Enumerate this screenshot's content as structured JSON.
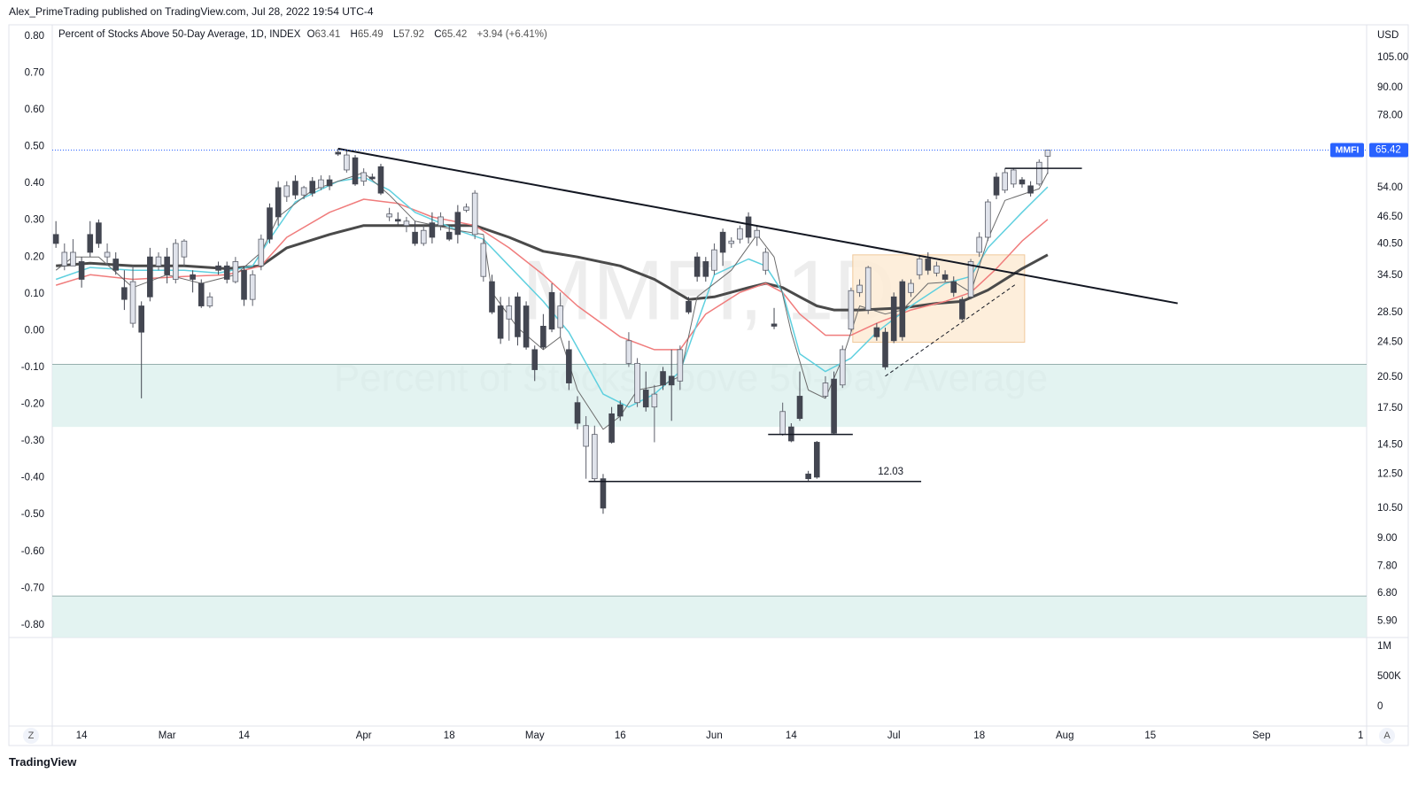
{
  "header": {
    "publisher": "Alex_PrimeTrading published on TradingView.com, Jul 28, 2022 19:54 UTC-4"
  },
  "ui": {
    "left_button": "Z",
    "right_button": "A",
    "logo": "TradingView"
  },
  "chart_data": {
    "type": "candlestick",
    "title": "Percent of Stocks Above 50-Day Average, 1D, INDEX",
    "ohlc_letters": [
      "O",
      "H",
      "L",
      "C"
    ],
    "change_label": "+3.94 (+6.41%)",
    "symbol": "MMFI",
    "watermark": "MMFI, 1D",
    "watermark_subtitle": "Percent of Stocks Above 50-Day Average",
    "currency": "USD",
    "log_scale": true,
    "up_color": "#e0e3eb",
    "down_color": "#434651",
    "xlim": [
      -0.43,
      153.3
    ],
    "xticks": [
      {
        "value": 3,
        "label": "14"
      },
      {
        "value": 13,
        "label": "Mar"
      },
      {
        "value": 22,
        "label": "14"
      },
      {
        "value": 36,
        "label": "Apr"
      },
      {
        "value": 46,
        "label": "18"
      },
      {
        "value": 56,
        "label": "May"
      },
      {
        "value": 66,
        "label": "16"
      },
      {
        "value": 77,
        "label": "Jun"
      },
      {
        "value": 86,
        "label": "14"
      },
      {
        "value": 98,
        "label": "Jul"
      },
      {
        "value": 108,
        "label": "18"
      },
      {
        "value": 118,
        "label": "Aug"
      },
      {
        "value": 128,
        "label": "15"
      },
      {
        "value": 141,
        "label": "Sep"
      },
      {
        "value": 152.6,
        "label": "1"
      }
    ],
    "ylim": [
      5.42,
      124.1
    ],
    "yticks": [
      {
        "value": 105,
        "label": "105.00"
      },
      {
        "value": 90,
        "label": "90.00"
      },
      {
        "value": 78,
        "label": "78.00"
      },
      {
        "value": 54,
        "label": "54.00"
      },
      {
        "value": 46.5,
        "label": "46.50"
      },
      {
        "value": 40.5,
        "label": "40.50"
      },
      {
        "value": 34.5,
        "label": "34.50"
      },
      {
        "value": 28.5,
        "label": "28.50"
      },
      {
        "value": 24.5,
        "label": "24.50"
      },
      {
        "value": 20.5,
        "label": "20.50"
      },
      {
        "value": 17.5,
        "label": "17.50"
      },
      {
        "value": 14.5,
        "label": "14.50"
      },
      {
        "value": 12.5,
        "label": "12.50"
      },
      {
        "value": 10.5,
        "label": "10.50"
      },
      {
        "value": 9,
        "label": "9.00"
      },
      {
        "value": 7.8,
        "label": "7.80"
      },
      {
        "value": 6.8,
        "label": "6.80"
      },
      {
        "value": 5.9,
        "label": "5.90"
      }
    ],
    "y2lim": [
      -0.834,
      0.831
    ],
    "y2ticks": [
      {
        "value": 0.8,
        "label": "0.80"
      },
      {
        "value": 0.7,
        "label": "0.70"
      },
      {
        "value": 0.6,
        "label": "0.60"
      },
      {
        "value": 0.5,
        "label": "0.50"
      },
      {
        "value": 0.4,
        "label": "0.40"
      },
      {
        "value": 0.3,
        "label": "0.30"
      },
      {
        "value": 0.2,
        "label": "0.20"
      },
      {
        "value": 0.1,
        "label": "0.10"
      },
      {
        "value": 0,
        "label": "0.00"
      },
      {
        "value": -0.1,
        "label": "-0.10"
      },
      {
        "value": -0.2,
        "label": "-0.20"
      },
      {
        "value": -0.3,
        "label": "-0.30"
      },
      {
        "value": -0.4,
        "label": "-0.40"
      },
      {
        "value": -0.5,
        "label": "-0.50"
      },
      {
        "value": -0.6,
        "label": "-0.60"
      },
      {
        "value": -0.7,
        "label": "-0.70"
      },
      {
        "value": -0.8,
        "label": "-0.80"
      }
    ],
    "volume_lim": [
      -323000,
      1147000
    ],
    "volume_ticks": [
      {
        "value": 1000000,
        "label": "1M"
      },
      {
        "value": 500000,
        "label": "500K"
      },
      0
    ],
    "open": [
      42.5,
      36.2,
      36.2,
      37.0,
      42.5,
      45.1,
      37.9,
      37.5,
      32.4,
      27.0,
      29.5,
      37.9,
      36.2,
      37.9,
      33.8,
      37.9,
      34.6,
      33.1,
      29.5,
      36.2,
      36.2,
      33.4,
      35.4,
      30.5,
      36.2,
      48.7,
      54.0,
      51.6,
      55.8,
      52.0,
      55.8,
      54.0,
      56.2,
      64.7,
      59.1,
      62.9,
      55.8,
      57.0,
      60.1,
      46.5,
      45.9,
      44.5,
      43.0,
      40.6,
      45.1,
      44.5,
      43.0,
      47.6,
      48.1,
      42.5,
      34.3,
      33.4,
      29.5,
      27.6,
      30.9,
      29.5,
      23.6,
      26.6,
      31.6,
      26.4,
      23.6,
      18.0,
      14.4,
      12.2,
      12.2,
      17.0,
      17.8,
      22.0,
      18.0,
      19.2,
      17.6,
      21.1,
      20.6,
      20.1,
      30.2,
      37.9,
      37.0,
      35.4,
      43.0,
      40.6,
      41.5,
      46.5,
      41.9,
      35.4,
      26.9,
      15.3,
      15.9,
      18.6,
      12.5,
      14.7,
      18.6,
      20.3,
      19.7,
      26.2,
      31.6,
      28.9,
      26.4,
      25.8,
      30.9,
      33.4,
      31.6,
      34.6,
      37.5,
      34.9,
      34.6,
      33.4,
      30.5,
      30.9,
      38.8,
      41.9,
      57.0,
      53.3,
      55.0,
      56.2,
      54.5,
      55.0,
      63.41
    ],
    "high": [
      45.5,
      40.6,
      41.5,
      37.9,
      45.5,
      45.9,
      40.6,
      38.8,
      35.4,
      36.2,
      30.2,
      39.7,
      38.8,
      39.7,
      41.5,
      41.5,
      35.4,
      33.8,
      31.6,
      37.0,
      37.0,
      37.9,
      36.2,
      35.4,
      42.5,
      49.8,
      55.8,
      55.8,
      57.5,
      54.5,
      57.0,
      57.5,
      57.5,
      65.9,
      65.3,
      63.8,
      59.6,
      58.0,
      61.0,
      48.7,
      47.6,
      46.5,
      45.5,
      44.5,
      47.6,
      47.6,
      44.5,
      49.4,
      49.8,
      53.3,
      41.5,
      34.6,
      30.9,
      30.9,
      31.6,
      30.2,
      24.1,
      28.3,
      33.1,
      31.6,
      24.7,
      18.6,
      16.8,
      16.0,
      12.5,
      17.6,
      18.2,
      25.8,
      22.6,
      21.1,
      19.7,
      21.6,
      23.6,
      24.1,
      30.9,
      38.8,
      37.9,
      40.6,
      43.8,
      41.9,
      44.5,
      47.6,
      44.5,
      39.7,
      29.2,
      18.0,
      16.2,
      21.1,
      12.7,
      14.8,
      20.6,
      21.1,
      24.1,
      32.4,
      33.8,
      36.2,
      27.0,
      26.4,
      31.6,
      33.8,
      33.8,
      38.3,
      38.8,
      37.0,
      35.4,
      34.3,
      30.9,
      37.5,
      43.0,
      50.9,
      58.3,
      59.6,
      59.6,
      57.0,
      55.8,
      62.4,
      65.49
    ],
    "low": [
      39.7,
      35.4,
      36.2,
      32.4,
      37.9,
      39.7,
      36.2,
      34.6,
      28.9,
      26.4,
      18.4,
      30.2,
      35.4,
      33.1,
      33.1,
      36.2,
      31.6,
      29.2,
      29.2,
      34.6,
      33.1,
      33.1,
      29.5,
      29.5,
      35.4,
      40.6,
      44.5,
      50.2,
      50.9,
      50.9,
      51.6,
      53.3,
      53.3,
      63.5,
      58.3,
      54.5,
      54.5,
      56.2,
      52.0,
      45.5,
      44.5,
      43.0,
      40.1,
      40.1,
      40.6,
      43.4,
      41.1,
      40.6,
      47.6,
      41.5,
      33.4,
      28.3,
      24.3,
      24.7,
      24.1,
      23.6,
      20.1,
      23.6,
      25.8,
      25.2,
      19.2,
      15.7,
      12.2,
      12.0,
      10.2,
      14.6,
      16.4,
      21.6,
      17.6,
      17.2,
      14.7,
      19.2,
      16.4,
      19.2,
      28.3,
      33.4,
      33.4,
      34.6,
      36.2,
      39.7,
      40.6,
      40.6,
      40.1,
      34.6,
      26.2,
      15.2,
      14.7,
      16.4,
      12.03,
      12.2,
      18.4,
      15.3,
      19.4,
      25.8,
      30.9,
      28.3,
      24.7,
      21.3,
      24.4,
      24.7,
      30.9,
      33.8,
      34.6,
      34.3,
      33.4,
      30.9,
      27.4,
      30.5,
      37.9,
      41.1,
      50.9,
      52.5,
      54.0,
      54.0,
      51.6,
      54.5,
      57.92
    ],
    "close": [
      40.6,
      38.8,
      38.8,
      33.8,
      38.8,
      40.6,
      38.8,
      35.4,
      30.5,
      33.4,
      25.8,
      30.9,
      37.9,
      34.6,
      40.6,
      41.1,
      33.8,
      29.5,
      30.9,
      35.4,
      33.8,
      37.0,
      30.5,
      34.6,
      41.5,
      41.5,
      46.5,
      54.5,
      52.0,
      54.0,
      52.5,
      56.2,
      54.5,
      64.1,
      63.8,
      55.0,
      58.3,
      56.5,
      52.5,
      47.2,
      45.5,
      45.5,
      40.6,
      43.4,
      41.9,
      46.5,
      41.5,
      42.5,
      48.9,
      52.5,
      40.6,
      28.6,
      25.0,
      29.5,
      25.2,
      23.9,
      21.3,
      23.9,
      26.2,
      29.5,
      19.9,
      16.2,
      16.0,
      15.3,
      10.5,
      14.7,
      16.8,
      24.7,
      22.0,
      17.6,
      18.8,
      19.7,
      19.7,
      23.6,
      28.6,
      34.3,
      34.3,
      39.3,
      38.8,
      41.1,
      43.8,
      41.9,
      43.4,
      38.8,
      26.6,
      17.2,
      14.8,
      16.6,
      12.2,
      12.3,
      19.9,
      15.4,
      23.6,
      31.9,
      32.8,
      35.9,
      25.2,
      21.6,
      24.7,
      25.2,
      33.1,
      37.5,
      35.4,
      36.2,
      33.8,
      31.6,
      27.6,
      37.0,
      41.9,
      50.2,
      52.0,
      58.3,
      59.1,
      55.0,
      52.5,
      61.48,
      65.42
    ],
    "moving_averages": [
      {
        "color": "#4a4a4a",
        "width": 3,
        "x": [
          0,
          4,
          9,
          15,
          20,
          24,
          27,
          32,
          36,
          40,
          44,
          49,
          53,
          57,
          61,
          66,
          70,
          74,
          77,
          81,
          83,
          85,
          87,
          89,
          91,
          94,
          99,
          103,
          106,
          109,
          113,
          116
        ],
        "values": [
          36.2,
          36.7,
          36.2,
          36.2,
          35.7,
          36.2,
          39.7,
          42.5,
          44.5,
          44.5,
          44.5,
          44.5,
          41.9,
          39.0,
          37.9,
          36.2,
          33.8,
          30.5,
          30.9,
          32.4,
          33.1,
          32.4,
          30.9,
          29.5,
          28.9,
          28.9,
          29.2,
          29.9,
          30.2,
          32.0,
          35.7,
          38.3
        ]
      },
      {
        "color": "#f07c7c",
        "width": 1.5,
        "x": [
          0,
          4,
          9,
          15,
          20,
          24,
          27,
          32,
          36,
          40,
          44,
          49,
          53,
          57,
          61,
          66,
          70,
          73,
          76,
          80,
          83,
          85,
          87,
          90,
          93,
          96,
          100,
          104,
          107,
          110,
          113,
          116
        ],
        "values": [
          32.8,
          34.6,
          33.8,
          34.3,
          34.6,
          36.2,
          41.9,
          47.6,
          50.9,
          49.8,
          46.5,
          44.5,
          39.7,
          34.6,
          29.5,
          25.2,
          23.6,
          23.6,
          28.3,
          31.6,
          33.1,
          31.6,
          28.3,
          25.4,
          25.4,
          27.0,
          28.9,
          30.2,
          31.6,
          35.7,
          41.1,
          45.9
        ]
      },
      {
        "color": "#5fd0df",
        "width": 1.5,
        "x": [
          0,
          4,
          9,
          15,
          19,
          23,
          25,
          28,
          33,
          36,
          39,
          42,
          47,
          50,
          53,
          57,
          60,
          64,
          67,
          70,
          73,
          75,
          77,
          81,
          83,
          85,
          87,
          90,
          93,
          96,
          100,
          104,
          107,
          109,
          113,
          116
        ],
        "values": [
          33.8,
          35.9,
          35.4,
          35.4,
          34.9,
          36.2,
          41.5,
          50.2,
          55.8,
          57.0,
          53.3,
          47.6,
          43.4,
          41.5,
          36.2,
          30.2,
          25.8,
          18.8,
          17.6,
          18.8,
          21.1,
          27.0,
          34.6,
          37.5,
          36.2,
          31.6,
          23.1,
          21.1,
          22.6,
          25.8,
          29.5,
          33.1,
          34.3,
          39.7,
          47.6,
          54.2
        ]
      },
      {
        "color": "#6b6b6b",
        "width": 1,
        "x": [
          0,
          2,
          5,
          9,
          13,
          17,
          21,
          24,
          26,
          30,
          33,
          36,
          39,
          42,
          47,
          50,
          51,
          54,
          57,
          59,
          61,
          64,
          66,
          68,
          71,
          73,
          75,
          79,
          82,
          84,
          86,
          88,
          90,
          92,
          94,
          97,
          99,
          102,
          105,
          107,
          109,
          111,
          115,
          116
        ],
        "values": [
          35.4,
          37.9,
          37.9,
          32.4,
          34.6,
          33.1,
          34.6,
          38.8,
          46.5,
          53.3,
          55.8,
          58.3,
          52.0,
          45.5,
          43.4,
          42.5,
          31.6,
          26.4,
          23.6,
          25.2,
          19.2,
          15.7,
          16.8,
          19.2,
          19.7,
          20.6,
          30.9,
          35.4,
          42.5,
          37.9,
          25.8,
          19.2,
          18.4,
          22.6,
          29.5,
          28.3,
          28.9,
          33.1,
          33.4,
          31.6,
          41.5,
          50.6,
          53.7,
          58.3
        ]
      }
    ],
    "zones": [
      {
        "range": [
          15.9,
          21.9
        ],
        "color": "#dcf0ee"
      },
      {
        "range": [
          5.42,
          6.7
        ],
        "color": "#dcf0ee"
      }
    ],
    "box": {
      "x": [
        93.2,
        113.3
      ],
      "range": [
        24.5,
        38.3
      ],
      "color": "#fdebd5"
    },
    "trendline": {
      "x": [
        33,
        131.2
      ],
      "values": [
        65.9,
        29.9
      ]
    },
    "dashed_line": {
      "x": [
        97,
        112.3
      ],
      "values": [
        20.6,
        33.0
      ]
    },
    "hlines": [
      {
        "level": 12.03,
        "x": [
          62.3,
          101.2
        ],
        "label": 12.03
      },
      {
        "level": 15.3,
        "x": [
          83.3,
          93.2
        ]
      },
      {
        "level": 59.6,
        "x": [
          111,
          120
        ]
      }
    ]
  }
}
